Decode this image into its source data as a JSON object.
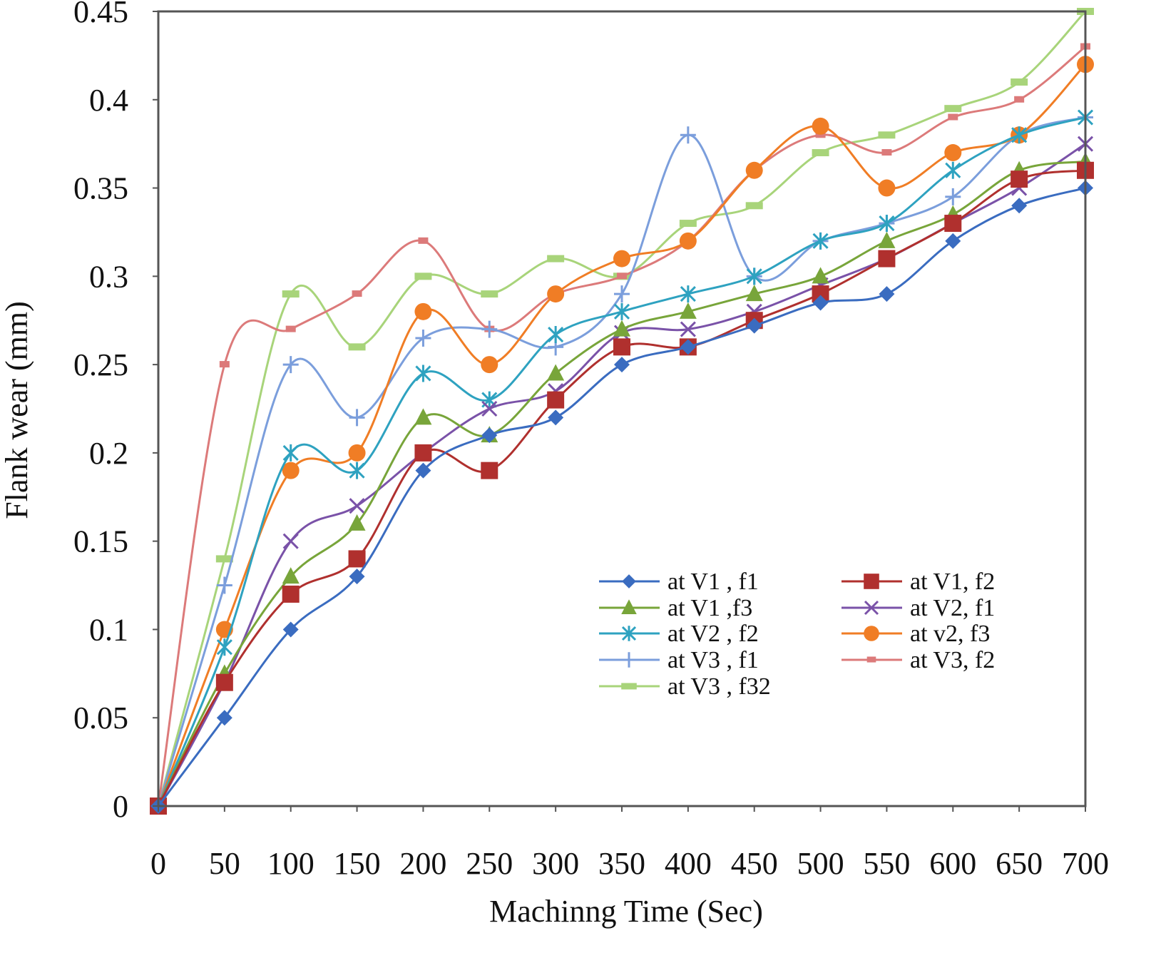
{
  "chart_data": {
    "type": "line",
    "title": "",
    "xlabel": "Machinng Time (Sec)",
    "ylabel": "Flank wear (mm)",
    "x": [
      0,
      50,
      100,
      150,
      200,
      250,
      300,
      350,
      400,
      450,
      500,
      550,
      600,
      650,
      700
    ],
    "xlim": [
      0,
      700
    ],
    "ylim": [
      0,
      0.45
    ],
    "xticks": [
      "0",
      "50",
      "100",
      "150",
      "200",
      "250",
      "300",
      "350",
      "400",
      "450",
      "500",
      "550",
      "600",
      "650",
      "700"
    ],
    "yticks": [
      "0",
      "0.05",
      "0.1",
      "0.15",
      "0.2",
      "0.25",
      "0.3",
      "0.35",
      "0.4",
      "0.45"
    ],
    "grid": false,
    "legend_position": "lower-right inside",
    "series": [
      {
        "name": "at V1 , f1",
        "color": "#3a6cc0",
        "marker": "diamond",
        "values": [
          0,
          0.05,
          0.1,
          0.13,
          0.19,
          0.21,
          0.22,
          0.25,
          0.26,
          0.272,
          0.285,
          0.29,
          0.32,
          0.34,
          0.35
        ]
      },
      {
        "name": "at V1, f2",
        "color": "#b0302e",
        "marker": "square",
        "values": [
          0,
          0.07,
          0.12,
          0.14,
          0.2,
          0.19,
          0.23,
          0.26,
          0.26,
          0.275,
          0.29,
          0.31,
          0.33,
          0.355,
          0.36
        ]
      },
      {
        "name": "at V1 ,f3",
        "color": "#78a53a",
        "marker": "triangle",
        "values": [
          0,
          0.075,
          0.13,
          0.16,
          0.22,
          0.21,
          0.245,
          0.27,
          0.28,
          0.29,
          0.3,
          0.32,
          0.335,
          0.36,
          0.365
        ]
      },
      {
        "name": "at V2, f1",
        "color": "#7a52a8",
        "marker": "x",
        "values": [
          0,
          0.07,
          0.15,
          0.17,
          0.2,
          0.225,
          0.235,
          0.268,
          0.27,
          0.28,
          0.295,
          0.31,
          0.33,
          0.35,
          0.375
        ]
      },
      {
        "name": "at V2 , f2",
        "color": "#2ea2c0",
        "marker": "star",
        "values": [
          0,
          0.09,
          0.2,
          0.19,
          0.245,
          0.23,
          0.267,
          0.28,
          0.29,
          0.3,
          0.32,
          0.33,
          0.36,
          0.38,
          0.39
        ]
      },
      {
        "name": "at v2, f3",
        "color": "#f07d25",
        "marker": "circle",
        "values": [
          0,
          0.1,
          0.19,
          0.2,
          0.28,
          0.25,
          0.29,
          0.31,
          0.32,
          0.36,
          0.385,
          0.35,
          0.37,
          0.38,
          0.42
        ]
      },
      {
        "name": "at V3 , f1",
        "color": "#7b9edc",
        "marker": "plus",
        "values": [
          0,
          0.125,
          0.25,
          0.22,
          0.265,
          0.27,
          0.26,
          0.29,
          0.38,
          0.3,
          0.32,
          0.33,
          0.345,
          0.38,
          0.39
        ]
      },
      {
        "name": "at V3, f2",
        "color": "#dc7a7a",
        "marker": "dash",
        "values": [
          0,
          0.25,
          0.27,
          0.29,
          0.32,
          0.27,
          0.29,
          0.3,
          0.32,
          0.36,
          0.38,
          0.37,
          0.39,
          0.4,
          0.43
        ]
      },
      {
        "name": "at V3 , f32",
        "color": "#a8d47a",
        "marker": "bar",
        "values": [
          0,
          0.14,
          0.29,
          0.26,
          0.3,
          0.29,
          0.31,
          0.3,
          0.33,
          0.34,
          0.37,
          0.38,
          0.395,
          0.41,
          0.45
        ]
      }
    ]
  }
}
